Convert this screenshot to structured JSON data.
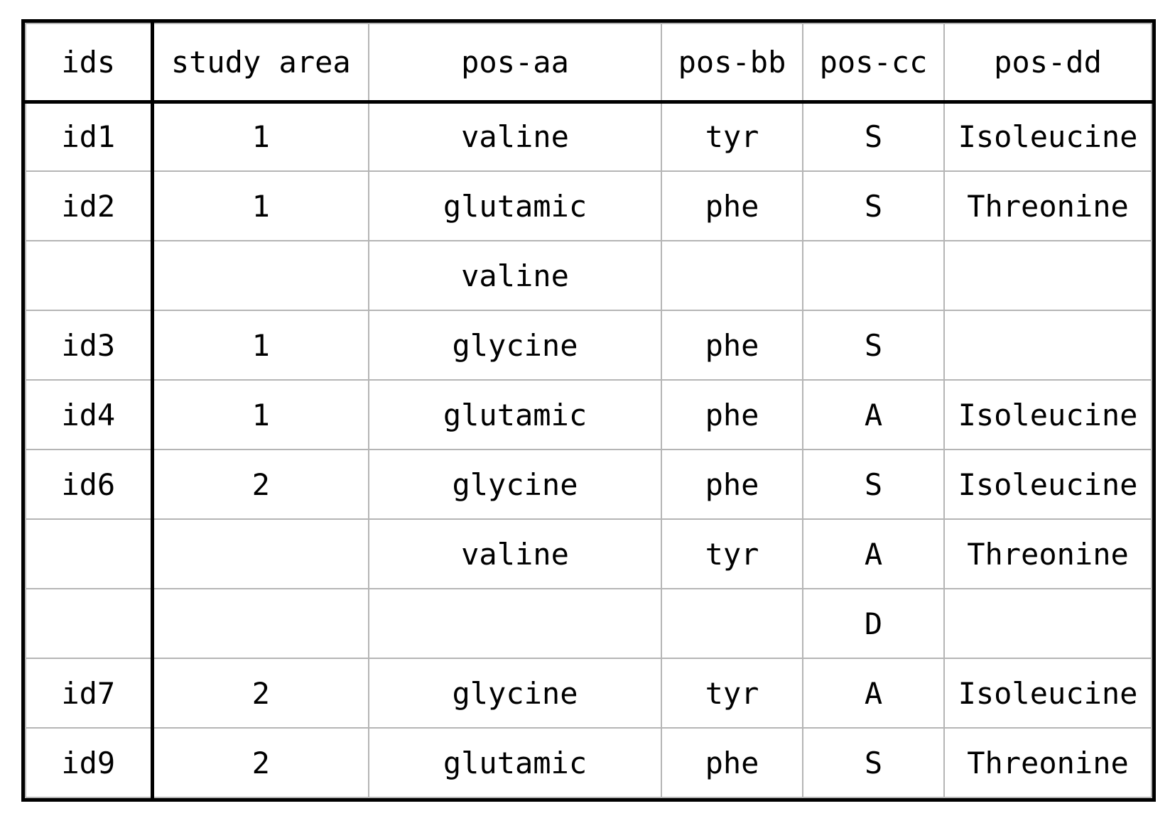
{
  "table": {
    "headers": [
      "ids",
      "study area",
      "pos-aa",
      "pos-bb",
      "pos-cc",
      "pos-dd"
    ],
    "rows": [
      [
        "id1",
        "1",
        "valine",
        "tyr",
        "S",
        "Isoleucine"
      ],
      [
        "id2",
        "1",
        "glutamic",
        "phe",
        "S",
        "Threonine"
      ],
      [
        "",
        "",
        "valine",
        "",
        "",
        ""
      ],
      [
        "id3",
        "1",
        "glycine",
        "phe",
        "S",
        ""
      ],
      [
        "id4",
        "1",
        "glutamic",
        "phe",
        "A",
        "Isoleucine"
      ],
      [
        "id6",
        "2",
        "glycine",
        "phe",
        "S",
        "Isoleucine"
      ],
      [
        "",
        "",
        "valine",
        "tyr",
        "A",
        "Threonine"
      ],
      [
        "",
        "",
        "",
        "",
        "D",
        ""
      ],
      [
        "id7",
        "2",
        "glycine",
        "tyr",
        "A",
        "Isoleucine"
      ],
      [
        "id9",
        "2",
        "glutamic",
        "phe",
        "S",
        "Threonine"
      ]
    ]
  }
}
